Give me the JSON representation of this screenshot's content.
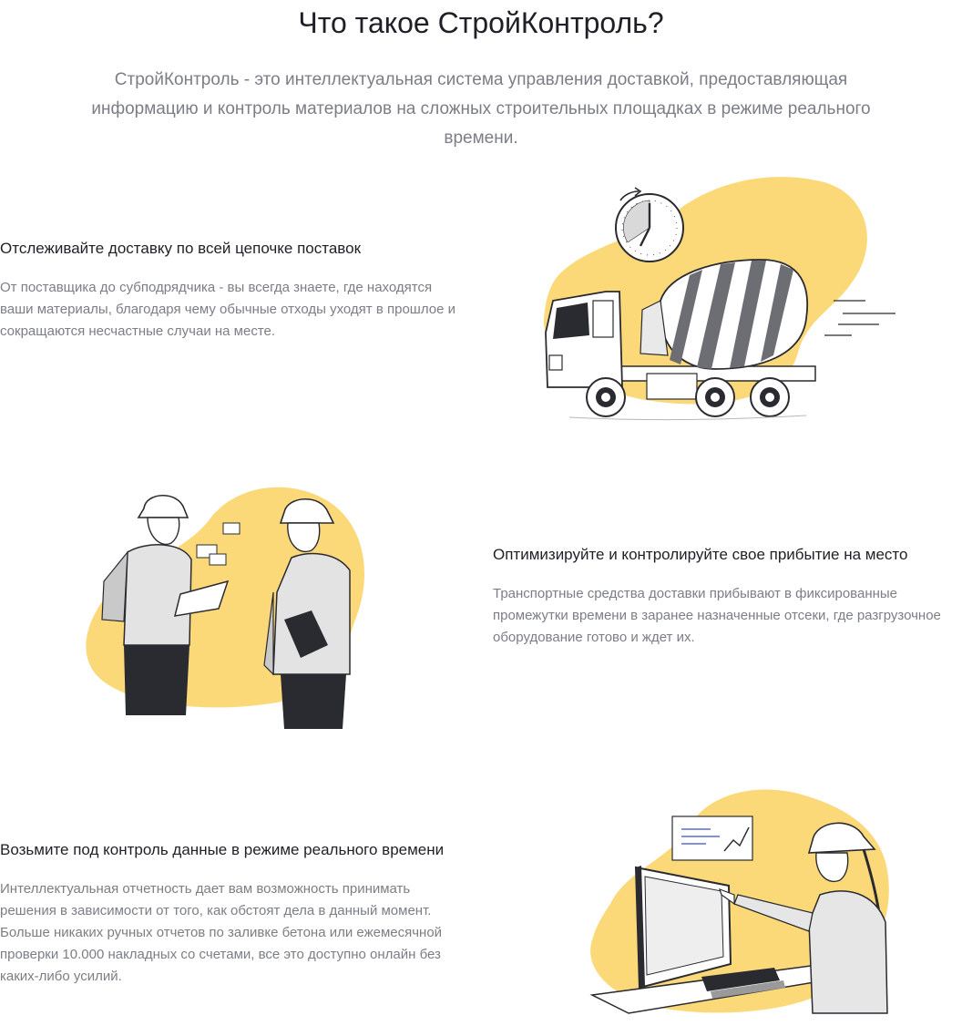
{
  "header": {
    "title": "Что такое СтройКонтроль?",
    "intro": "СтройКонтроль - это интеллектуальная система управления доставкой, предоставляющая информацию и контроль материалов на сложных строительных площадках в режиме реального времени."
  },
  "features": [
    {
      "title": "Отслеживайте доставку по всей цепочке поставок",
      "text": "От поставщика до субподрядчика - вы всегда знаете, где находятся ваши материалы, благодаря чему обычные отходы уходят в прошлое и сокращаются несчастные случаи на месте.",
      "illustration": "cement-truck-with-clock"
    },
    {
      "title": "Оптимизируйте и контролируйте свое прибытие на место",
      "text": "Транспортные средства доставки прибывают в фиксированные промежутки времени в заранее назначенные отсеки, где разгрузочное оборудование готово и ждет их.",
      "illustration": "two-workers-with-tablet"
    },
    {
      "title": "Возьмите под контроль данные в режиме реального времени",
      "text": "Интеллектуальная отчетность дает вам возможность принимать решения в зависимости от того, как обстоят дела в данный момент. Больше никаких ручных отчетов по заливке бетона или ежемесячной проверки 10.000 накладных со счетами, все это доступно онлайн без каких-либо усилий.",
      "illustration": "worker-at-computer"
    }
  ],
  "colors": {
    "accent_yellow": "#fbd878",
    "ink": "#1f2027",
    "muted": "#7c7e86"
  }
}
